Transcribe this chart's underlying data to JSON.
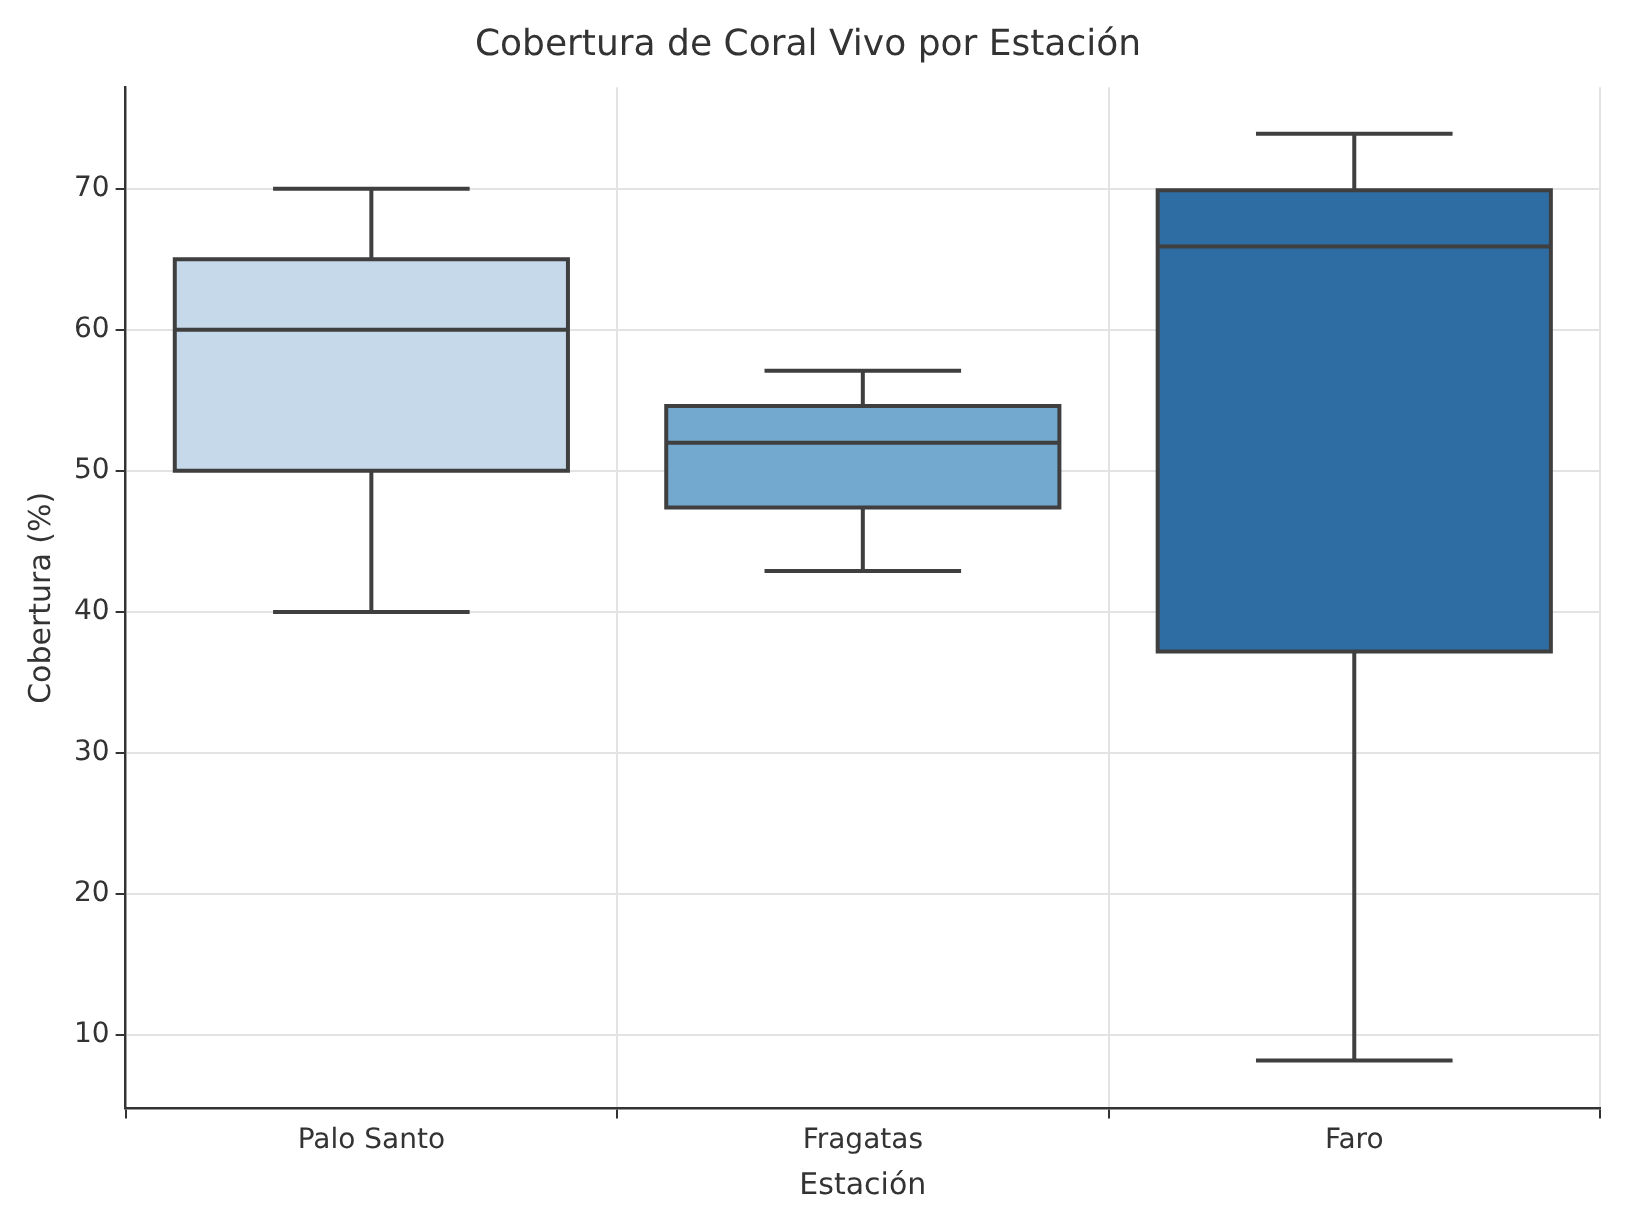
{
  "chart_data": {
    "type": "box",
    "title": "Cobertura de Coral Vivo por Estación",
    "xlabel": "Estación",
    "ylabel": "Cobertura (%)",
    "categories": [
      "Palo Santo",
      "Fragatas",
      "Faro"
    ],
    "colors": [
      "#c6d9eb",
      "#74a9cf",
      "#2e6da4"
    ],
    "boxes": [
      {
        "low": 40,
        "q1": 50,
        "median": 60,
        "q3": 65,
        "high": 70
      },
      {
        "low": 42.9,
        "q1": 47.4,
        "median": 52,
        "q3": 54.6,
        "high": 57.1
      },
      {
        "low": 8.2,
        "q1": 37.2,
        "median": 65.9,
        "q3": 69.9,
        "high": 73.9
      }
    ],
    "ylim": [
      4.8,
      77.2
    ],
    "yticks": [
      10,
      20,
      30,
      40,
      50,
      60,
      70
    ],
    "grid": true
  }
}
